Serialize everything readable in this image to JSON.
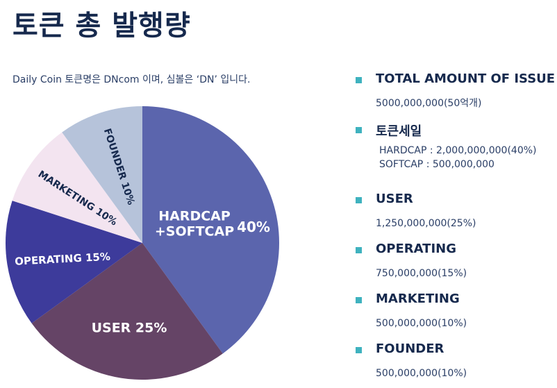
{
  "title": "토큰 총 발행량",
  "subtitle": "Daily Coin 토큰명은 DNcom 이며, 심볼은 ‘DN’ 입니다.",
  "chart_data": {
    "type": "pie",
    "slices": [
      {
        "label_lines": [
          "HARDCAP",
          "+SOFTCAP"
        ],
        "pct_label": "40%",
        "value": 40,
        "color": "#5b65ad",
        "text_color": "#ffffff"
      },
      {
        "label_lines": [
          "USER 25%"
        ],
        "pct_label": "",
        "value": 25,
        "color": "#654466",
        "text_color": "#ffffff"
      },
      {
        "label_lines": [
          "OPERATING 15%"
        ],
        "pct_label": "",
        "value": 15,
        "color": "#3d3b9b",
        "text_color": "#ffffff"
      },
      {
        "label_lines": [
          "MARKETING 10%"
        ],
        "pct_label": "",
        "value": 10,
        "color": "#f3e4f0",
        "text_color": "#16294d"
      },
      {
        "label_lines": [
          "FOUNDER 10%"
        ],
        "pct_label": "",
        "value": 10,
        "color": "#b6c3da",
        "text_color": "#16294d"
      }
    ]
  },
  "legend": [
    {
      "label": "TOTAL AMOUNT OF ISSUE",
      "values": [
        "5000,000,000(50억개)"
      ],
      "indent": false
    },
    {
      "label": "토큰세일",
      "values": [
        "HARDCAP : 2,000,000,000(40%)",
        "SOFTCAP : 500,000,000"
      ],
      "indent": true
    },
    {
      "label": "USER",
      "values": [
        "1,250,000,000(25%)"
      ],
      "indent": false
    },
    {
      "label": "OPERATING",
      "values": [
        "750,000,000(15%)"
      ],
      "indent": false
    },
    {
      "label": "MARKETING",
      "values": [
        "500,000,000(10%)"
      ],
      "indent": false
    },
    {
      "label": "FOUNDER",
      "values": [
        "500,000,000(10%)"
      ],
      "indent": false
    }
  ],
  "colors": {
    "bullet": "#3fb2bf",
    "heading": "#16294d"
  }
}
